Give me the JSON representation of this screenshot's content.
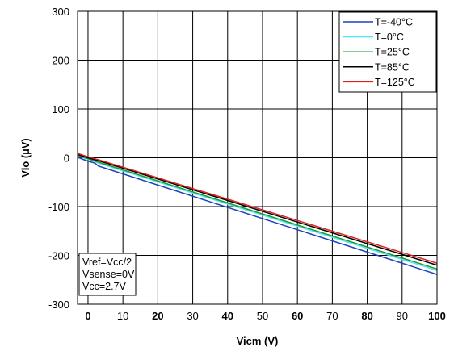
{
  "chart_data": {
    "type": "line",
    "xlabel": "Vicm (V)",
    "ylabel": "Vio (µV)",
    "xlim": [
      -3,
      100
    ],
    "ylim": [
      -300,
      300
    ],
    "x_ticks": [
      {
        "value": 0,
        "label": "0",
        "bold": true
      },
      {
        "value": 10,
        "label": "10",
        "bold": false
      },
      {
        "value": 20,
        "label": "20",
        "bold": true
      },
      {
        "value": 30,
        "label": "30",
        "bold": false
      },
      {
        "value": 40,
        "label": "40",
        "bold": true
      },
      {
        "value": 50,
        "label": "50",
        "bold": false
      },
      {
        "value": 60,
        "label": "60",
        "bold": true
      },
      {
        "value": 70,
        "label": "70",
        "bold": false
      },
      {
        "value": 80,
        "label": "80",
        "bold": true
      },
      {
        "value": 90,
        "label": "90",
        "bold": false
      },
      {
        "value": 100,
        "label": "100",
        "bold": true
      }
    ],
    "y_ticks": [
      {
        "value": 300,
        "label": "300"
      },
      {
        "value": 200,
        "label": "200"
      },
      {
        "value": 100,
        "label": "100"
      },
      {
        "value": 0,
        "label": "0"
      },
      {
        "value": -100,
        "label": "-100"
      },
      {
        "value": -200,
        "label": "-200"
      },
      {
        "value": -300,
        "label": "-300"
      }
    ],
    "grid": true,
    "legend_position": "top-right",
    "series": [
      {
        "name": "T=-40°C",
        "color": "#1f3fbf",
        "x": [
          -3,
          0,
          2,
          3,
          100
        ],
        "y": [
          1,
          -7,
          -11,
          -17,
          -239
        ]
      },
      {
        "name": "T=0°C",
        "color": "#55e5f5",
        "x": [
          -3,
          0,
          3,
          100
        ],
        "y": [
          4,
          -3,
          -11,
          -231
        ]
      },
      {
        "name": "T=25°C",
        "color": "#1a9a2a",
        "x": [
          -3,
          0,
          3,
          100
        ],
        "y": [
          5,
          -2,
          -9,
          -228
        ]
      },
      {
        "name": "T=85°C",
        "color": "#000000",
        "x": [
          -3,
          0,
          3,
          100
        ],
        "y": [
          7,
          0,
          -6,
          -220
        ]
      },
      {
        "name": "T=125°C",
        "color": "#e02020",
        "x": [
          -3,
          0,
          3,
          100
        ],
        "y": [
          9,
          2,
          -4,
          -216
        ]
      }
    ],
    "annotations": [
      "Vref=Vcc/2",
      "Vsense=0V",
      "Vcc=2.7V"
    ]
  }
}
